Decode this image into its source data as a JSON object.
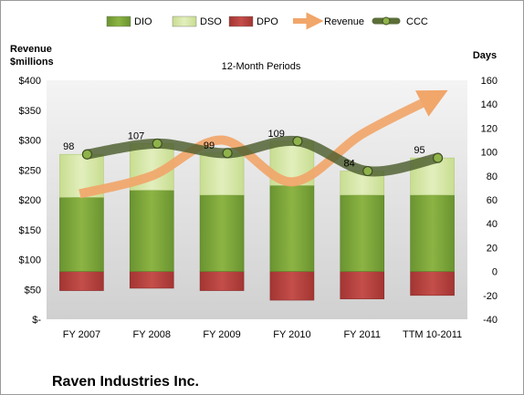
{
  "chart_data": {
    "type": "bar",
    "title": "12-Month Periods",
    "company": "Raven Industries Inc.",
    "left_axis_label": [
      "Revenue",
      "$millions"
    ],
    "right_axis_label": "Days",
    "categories": [
      "FY 2007",
      "FY 2008",
      "FY 2009",
      "FY 2010",
      "FY 2011",
      "TTM 10-2011"
    ],
    "left_axis": {
      "min": 0,
      "max": 400,
      "step": 50,
      "tick_labels": [
        "$-",
        "$50",
        "$100",
        "$150",
        "$200",
        "$250",
        "$300",
        "$350",
        "$400"
      ]
    },
    "right_axis": {
      "min": -40,
      "max": 160,
      "step": 20,
      "tick_labels": [
        "-40",
        "-20",
        "0",
        "20",
        "40",
        "60",
        "80",
        "100",
        "120",
        "140",
        "160"
      ]
    },
    "legend": {
      "placement": "top",
      "entries": [
        {
          "name": "DIO",
          "color": "#7ea637"
        },
        {
          "name": "DSO",
          "color": "#d6e8a6"
        },
        {
          "name": "DPO",
          "color": "#b8403d"
        },
        {
          "name": "Revenue",
          "color": "#f1a66a"
        },
        {
          "name": "CCC",
          "color": "#5b6e38"
        }
      ]
    },
    "series": [
      {
        "name": "DIO",
        "axis": "right",
        "values": [
          62,
          68,
          64,
          72,
          64,
          64
        ]
      },
      {
        "name": "DSO",
        "axis": "right",
        "values": [
          36,
          39,
          35,
          37,
          20,
          31
        ]
      },
      {
        "name": "DPO",
        "axis": "right",
        "values": [
          -16,
          -14,
          -16,
          -24,
          -23,
          -20
        ]
      },
      {
        "name": "Revenue",
        "axis": "left",
        "values": [
          210,
          240,
          300,
          230,
          310,
          370
        ]
      },
      {
        "name": "CCC",
        "axis": "right",
        "values": [
          98,
          107,
          99,
          109,
          84,
          95
        ],
        "labels": [
          "98",
          "107",
          "99",
          "109",
          "84",
          "95"
        ]
      }
    ],
    "grid": false
  }
}
